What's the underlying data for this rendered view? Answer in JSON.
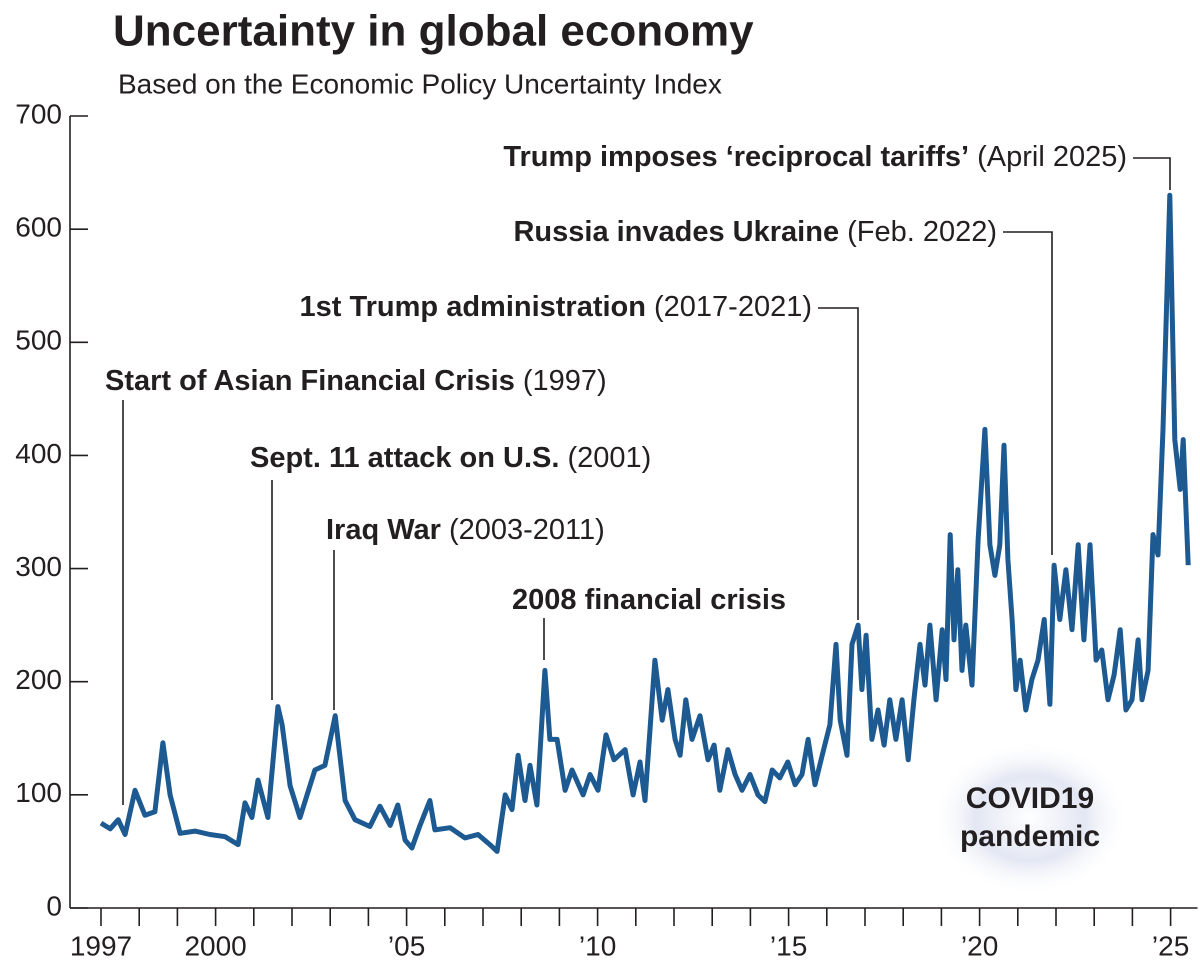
{
  "chart_data": {
    "type": "line",
    "title": "Uncertainty in global economy",
    "subtitle": "Based on the Economic Policy Uncertainty Index",
    "color": "#1d5a92",
    "x": [
      1997.0,
      1997.24,
      1997.45,
      1997.63,
      1997.89,
      1998.15,
      1998.41,
      1998.62,
      1998.81,
      1999.07,
      1999.46,
      1999.85,
      2000.25,
      2000.59,
      2000.77,
      2000.95,
      2001.11,
      2001.37,
      2001.63,
      2001.74,
      2001.95,
      2002.21,
      2002.6,
      2002.86,
      2003.13,
      2003.39,
      2003.65,
      2004.04,
      2004.3,
      2004.57,
      2004.77,
      2004.96,
      2005.14,
      2005.35,
      2005.61,
      2005.74,
      2006.14,
      2006.53,
      2006.87,
      2007.18,
      2007.37,
      2007.58,
      2007.76,
      2007.92,
      2008.1,
      2008.23,
      2008.41,
      2008.62,
      2008.75,
      2008.94,
      2009.15,
      2009.33,
      2009.62,
      2009.8,
      2010.01,
      2010.22,
      2010.43,
      2010.72,
      2010.93,
      2011.11,
      2011.24,
      2011.5,
      2011.69,
      2011.84,
      2012.03,
      2012.16,
      2012.31,
      2012.47,
      2012.68,
      2012.89,
      2013.05,
      2013.2,
      2013.41,
      2013.6,
      2013.78,
      2013.99,
      2014.2,
      2014.38,
      2014.57,
      2014.77,
      2014.98,
      2015.17,
      2015.35,
      2015.51,
      2015.69,
      2015.88,
      2016.08,
      2016.24,
      2016.35,
      2016.53,
      2016.66,
      2016.82,
      2016.92,
      2017.03,
      2017.18,
      2017.34,
      2017.5,
      2017.65,
      2017.81,
      2017.97,
      2018.13,
      2018.28,
      2018.44,
      2018.57,
      2018.7,
      2018.86,
      2019.02,
      2019.12,
      2019.23,
      2019.33,
      2019.43,
      2019.54,
      2019.64,
      2019.8,
      2019.96,
      2020.14,
      2020.27,
      2020.4,
      2020.53,
      2020.64,
      2020.74,
      2020.85,
      2020.95,
      2021.06,
      2021.21,
      2021.37,
      2021.53,
      2021.69,
      2021.84,
      2021.95,
      2022.1,
      2022.26,
      2022.42,
      2022.58,
      2022.73,
      2022.89,
      2023.05,
      2023.2,
      2023.36,
      2023.52,
      2023.68,
      2023.83,
      2023.99,
      2024.15,
      2024.25,
      2024.41,
      2024.54,
      2024.67,
      2024.8,
      2024.98,
      2025.11,
      2025.25,
      2025.33,
      2025.46
    ],
    "values": [
      75,
      70,
      78,
      65,
      104,
      82,
      85,
      146,
      100,
      66,
      68,
      65,
      63,
      56,
      93,
      80,
      113,
      80,
      178,
      162,
      108,
      80,
      122,
      126,
      170,
      95,
      78,
      72,
      90,
      73,
      91,
      60,
      53,
      73,
      95,
      69,
      71,
      62,
      65,
      56,
      50,
      100,
      87,
      135,
      95,
      126,
      91,
      210,
      149,
      149,
      104,
      122,
      100,
      118,
      104,
      153,
      131,
      140,
      100,
      129,
      95,
      219,
      166,
      193,
      149,
      135,
      184,
      149,
      170,
      131,
      144,
      104,
      140,
      118,
      104,
      118,
      100,
      94,
      122,
      115,
      129,
      109,
      118,
      149,
      109,
      135,
      162,
      233,
      166,
      135,
      233,
      250,
      193,
      241,
      149,
      175,
      144,
      184,
      149,
      184,
      131,
      184,
      233,
      197,
      250,
      184,
      246,
      202,
      330,
      237,
      299,
      210,
      250,
      197,
      325,
      423,
      321,
      294,
      321,
      409,
      308,
      255,
      193,
      219,
      175,
      202,
      219,
      255,
      180,
      303,
      255,
      299,
      246,
      321,
      237,
      321,
      219,
      228,
      184,
      206,
      246,
      175,
      184,
      237,
      184,
      210,
      330,
      312,
      423,
      630,
      414,
      370,
      414,
      303
    ],
    "xlim": [
      1997,
      2025.6
    ],
    "xticks": [
      1997,
      2000,
      {
        "value": 2005,
        "label": "’05"
      },
      {
        "value": 2010,
        "label": "’10"
      },
      {
        "value": 2015,
        "label": "’15"
      },
      {
        "value": 2020,
        "label": "’20"
      },
      {
        "value": 2025,
        "label": "’25"
      }
    ],
    "x_minor_ticks": [
      1998,
      1999,
      2001,
      2002,
      2003,
      2004,
      2006,
      2007,
      2008,
      2009,
      2011,
      2012,
      2013,
      2014,
      2016,
      2017,
      2018,
      2019,
      2021,
      2022,
      2023,
      2024
    ],
    "ylim": [
      0,
      700
    ],
    "yticks": [
      0,
      100,
      200,
      300,
      400,
      500,
      600,
      700
    ],
    "annotations": [
      {
        "label": "Trump imposes ‘reciprocal tariffs’",
        "date": "(April 2025)"
      },
      {
        "label": "Russia invades Ukraine",
        "date": "(Feb. 2022)"
      },
      {
        "label": "1st Trump administration",
        "date": "(2017-2021)"
      },
      {
        "label": "Start of Asian Financial Crisis",
        "date": "(1997)"
      },
      {
        "label": "Sept. 11 attack on U.S.",
        "date": "(2001)"
      },
      {
        "label": "Iraq War",
        "date": "(2003-2011)"
      },
      {
        "label": "2008 financial crisis"
      }
    ],
    "covid_label": [
      "COVID19",
      "pandemic"
    ]
  }
}
